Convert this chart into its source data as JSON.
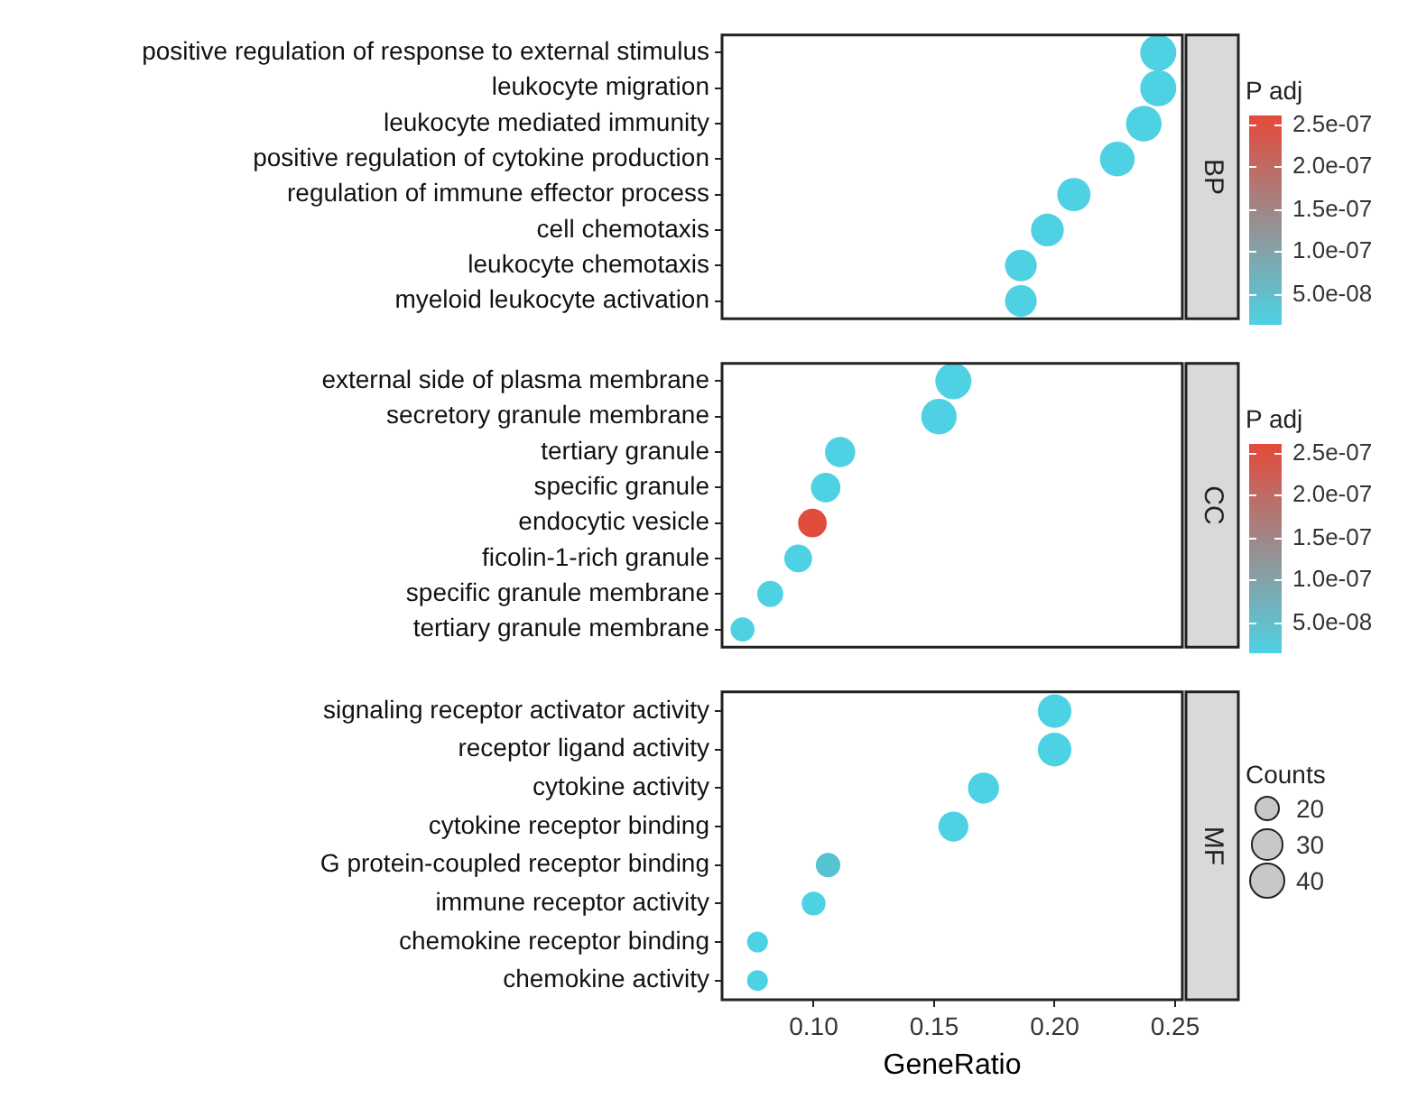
{
  "chart_data": [
    {
      "type": "bubble",
      "orientation": "horizontal",
      "annotations": [
        "BP"
      ],
      "categories": [
        "positive regulation of response to external stimulus",
        "leukocyte migration",
        "leukocyte mediated immunity",
        "positive regulation of cytokine production",
        "regulation of immune effector process",
        "cell chemotaxis",
        "leukocyte chemotaxis",
        "myeloid leukocyte activation"
      ],
      "values": [
        0.243,
        0.243,
        0.237,
        0.226,
        0.208,
        0.197,
        0.186,
        0.186
      ],
      "sizes": [
        1,
        1,
        0.975,
        0.925,
        0.85,
        0.825,
        0.775,
        0.775
      ],
      "cvalues": [
        1.5e-08,
        1.5e-08,
        1.5e-08,
        1.5e-08,
        1.5e-08,
        1.5e-08,
        1.5e-08,
        1.5e-08
      ],
      "xlim": [
        0.062,
        0.253
      ],
      "tick_labels": "y",
      "clabel": "P adj",
      "clim": [
        1.4e-08,
        2.6e-07
      ],
      "cticks": [
        {
          "value": 5e-08,
          "label": "5.0e-08"
        },
        {
          "value": 1e-07,
          "label": "1.0e-07"
        },
        {
          "value": 1.5e-07,
          "label": "1.5e-07"
        },
        {
          "value": 2e-07,
          "label": "2.0e-07"
        },
        {
          "value": 2.5e-07,
          "label": "2.5e-07"
        }
      ]
    },
    {
      "type": "bubble",
      "orientation": "horizontal",
      "annotations": [
        "CC"
      ],
      "categories": [
        "external side of plasma membrane",
        "secretory granule membrane",
        "tertiary granule",
        "specific granule",
        "endocytic vesicle",
        "ficolin-1-rich granule",
        "specific granule membrane",
        "tertiary granule membrane"
      ],
      "values": [
        0.158,
        0.152,
        0.111,
        0.105,
        0.0995,
        0.0936,
        0.082,
        0.0705
      ],
      "sizes": [
        1,
        0.963,
        0.704,
        0.667,
        0.63,
        0.593,
        0.519,
        0.444
      ],
      "cvalues": [
        1.5e-08,
        1.5e-08,
        1.5e-08,
        1.5e-08,
        2.55e-07,
        1.5e-08,
        1.5e-08,
        1.5e-08
      ],
      "xlim": [
        0.062,
        0.253
      ],
      "tick_labels": "y",
      "clabel": "P adj",
      "clim": [
        1.4e-08,
        2.6e-07
      ],
      "cticks": [
        {
          "value": 5e-08,
          "label": "5.0e-08"
        },
        {
          "value": 1e-07,
          "label": "1.0e-07"
        },
        {
          "value": 1.5e-07,
          "label": "1.5e-07"
        },
        {
          "value": 2e-07,
          "label": "2.0e-07"
        },
        {
          "value": 2.5e-07,
          "label": "2.5e-07"
        }
      ]
    },
    {
      "type": "bubble",
      "orientation": "horizontal",
      "annotations": [
        "MF"
      ],
      "categories": [
        "signaling receptor activator activity",
        "receptor ligand activity",
        "cytokine activity",
        "cytokine receptor binding",
        "G protein-coupled receptor binding",
        "immune receptor activity",
        "chemokine receptor binding",
        "chemokine activity"
      ],
      "values": [
        0.2,
        0.2,
        0.1705,
        0.158,
        0.106,
        0.1,
        0.0767,
        0.0767
      ],
      "sizes": [
        34,
        34,
        29,
        27,
        18,
        17,
        13,
        13
      ],
      "colors": [
        "#4dd2e4",
        "#4dd2e4",
        "#4dd2e4",
        "#4dd2e4",
        "#55c3d2",
        "#4dd2e4",
        "#4dd2e4",
        "#4dd2e4"
      ],
      "xlim": [
        0.062,
        0.253
      ],
      "xticks": [
        {
          "value": 0.1,
          "label": "0.10"
        },
        {
          "value": 0.15,
          "label": "0.15"
        },
        {
          "value": 0.2,
          "label": "0.20"
        },
        {
          "value": 0.25,
          "label": "0.25"
        }
      ],
      "xlabel": "GeneRatio",
      "legend_title": "Counts",
      "size_legend": [
        20,
        30,
        40
      ]
    }
  ]
}
